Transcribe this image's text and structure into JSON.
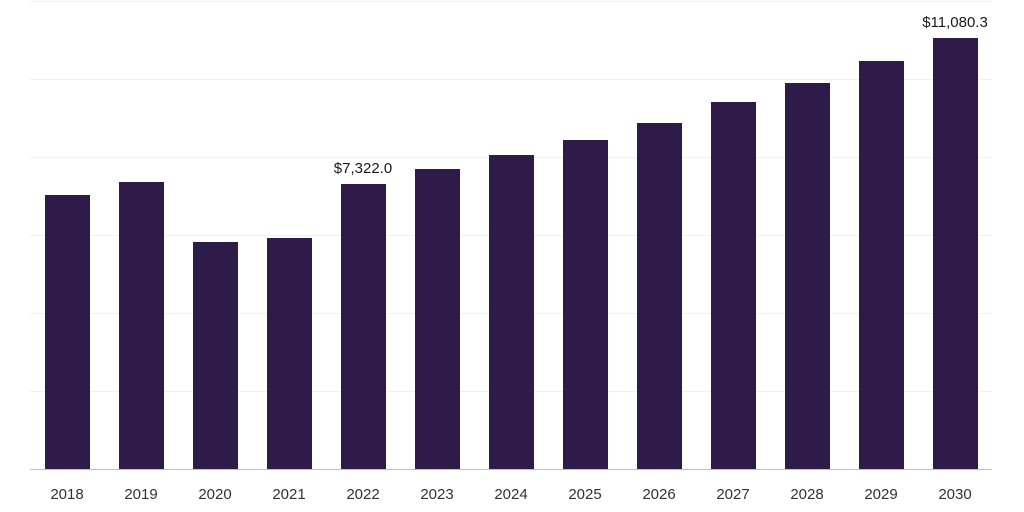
{
  "chart_data": {
    "type": "bar",
    "title": "",
    "xlabel": "",
    "ylabel": "",
    "ylim": [
      0,
      12000
    ],
    "grid": true,
    "gridline_values": [
      0,
      2000,
      4000,
      6000,
      8000,
      10000,
      12000
    ],
    "legend": "none",
    "bar_color": "#2f1b4a",
    "categories": [
      "2018",
      "2019",
      "2020",
      "2021",
      "2022",
      "2023",
      "2024",
      "2025",
      "2026",
      "2027",
      "2028",
      "2029",
      "2030"
    ],
    "values": [
      7050,
      7380,
      5850,
      5950,
      7322.0,
      7720,
      8080,
      8460,
      8900,
      9440,
      9920,
      10490,
      11080.3
    ],
    "bars": [
      {
        "category": "2018",
        "value": 7050,
        "label": ""
      },
      {
        "category": "2019",
        "value": 7380,
        "label": ""
      },
      {
        "category": "2020",
        "value": 5850,
        "label": ""
      },
      {
        "category": "2021",
        "value": 5950,
        "label": ""
      },
      {
        "category": "2022",
        "value": 7322.0,
        "label": "$7,322.0"
      },
      {
        "category": "2023",
        "value": 7720,
        "label": ""
      },
      {
        "category": "2024",
        "value": 8080,
        "label": ""
      },
      {
        "category": "2025",
        "value": 8460,
        "label": ""
      },
      {
        "category": "2026",
        "value": 8900,
        "label": ""
      },
      {
        "category": "2027",
        "value": 9440,
        "label": ""
      },
      {
        "category": "2028",
        "value": 9920,
        "label": ""
      },
      {
        "category": "2029",
        "value": 10490,
        "label": ""
      },
      {
        "category": "2030",
        "value": 11080.3,
        "label": "$11,080.3"
      }
    ]
  }
}
